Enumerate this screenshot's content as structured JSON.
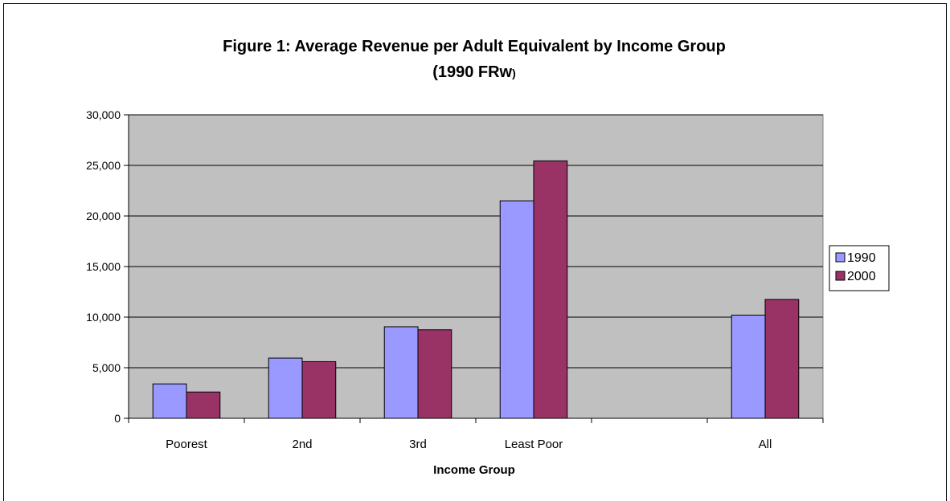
{
  "chart_data": {
    "type": "bar",
    "title": "Figure 1: Average Revenue per Adult Equivalent by Income Group",
    "subtitle_main": "(1990 FRw",
    "subtitle_paren": ")",
    "xlabel": "Income Group",
    "ylabel": "",
    "categories": [
      "Poorest",
      "2nd",
      "3rd",
      "Least Poor",
      "",
      "All"
    ],
    "series": [
      {
        "name": "1990",
        "color": "#9999ff",
        "values": [
          3400,
          5950,
          9050,
          21500,
          null,
          10200
        ]
      },
      {
        "name": "2000",
        "color": "#993366",
        "values": [
          2600,
          5600,
          8750,
          25450,
          null,
          11750
        ]
      }
    ],
    "ylim": [
      0,
      30000
    ],
    "yticks": [
      0,
      5000,
      10000,
      15000,
      20000,
      25000,
      30000
    ],
    "ytick_labels": [
      "0",
      "5,000",
      "10,000",
      "15,000",
      "20,000",
      "25,000",
      "30,000"
    ],
    "grid": true,
    "plot_background": "#c0c0c0",
    "legend_position": "right"
  }
}
